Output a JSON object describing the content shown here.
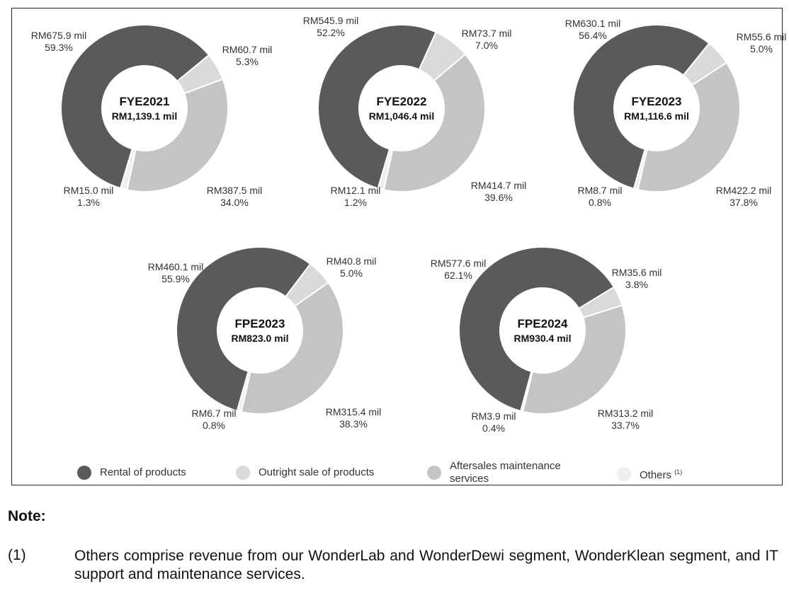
{
  "chart_data": {
    "type": "pie",
    "variant": "donut",
    "colors": {
      "rental": "#5a5a5a",
      "outright": "#d9d9d9",
      "aftersales": "#c4c4c4",
      "others": "#efefef"
    },
    "legend": [
      {
        "key": "rental",
        "label": "Rental of products"
      },
      {
        "key": "outright",
        "label": "Outright sale of products"
      },
      {
        "key": "aftersales",
        "label": "Aftersales maintenance services"
      },
      {
        "key": "others",
        "label": "Others",
        "sup": "(1)"
      }
    ],
    "charts": [
      {
        "title": "FYE2021",
        "total": "RM1,139.1 mil",
        "slices": [
          {
            "key": "rental",
            "value": 675.9,
            "amount": "RM675.9 mil",
            "percent": "59.3%"
          },
          {
            "key": "outright",
            "value": 60.7,
            "amount": "RM60.7 mil",
            "percent": "5.3%"
          },
          {
            "key": "aftersales",
            "value": 387.5,
            "amount": "RM387.5 mil",
            "percent": "34.0%"
          },
          {
            "key": "others",
            "value": 15.0,
            "amount": "RM15.0 mil",
            "percent": "1.3%"
          }
        ]
      },
      {
        "title": "FYE2022",
        "total": "RM1,046.4 mil",
        "slices": [
          {
            "key": "rental",
            "value": 545.9,
            "amount": "RM545.9 mil",
            "percent": "52.2%"
          },
          {
            "key": "outright",
            "value": 73.7,
            "amount": "RM73.7 mil",
            "percent": "7.0%"
          },
          {
            "key": "aftersales",
            "value": 414.7,
            "amount": "RM414.7 mil",
            "percent": "39.6%"
          },
          {
            "key": "others",
            "value": 12.1,
            "amount": "RM12.1 mil",
            "percent": "1.2%"
          }
        ]
      },
      {
        "title": "FYE2023",
        "total": "RM1,116.6 mil",
        "slices": [
          {
            "key": "rental",
            "value": 630.1,
            "amount": "RM630.1 mil",
            "percent": "56.4%"
          },
          {
            "key": "outright",
            "value": 55.6,
            "amount": "RM55.6 mil",
            "percent": "5.0%"
          },
          {
            "key": "aftersales",
            "value": 422.2,
            "amount": "RM422.2 mil",
            "percent": "37.8%"
          },
          {
            "key": "others",
            "value": 8.7,
            "amount": "RM8.7 mil",
            "percent": "0.8%"
          }
        ]
      },
      {
        "title": "FPE2023",
        "total": "RM823.0 mil",
        "slices": [
          {
            "key": "rental",
            "value": 460.1,
            "amount": "RM460.1 mil",
            "percent": "55.9%"
          },
          {
            "key": "outright",
            "value": 40.8,
            "amount": "RM40.8 mil",
            "percent": "5.0%"
          },
          {
            "key": "aftersales",
            "value": 315.4,
            "amount": "RM315.4 mil",
            "percent": "38.3%"
          },
          {
            "key": "others",
            "value": 6.7,
            "amount": "RM6.7 mil",
            "percent": "0.8%"
          }
        ]
      },
      {
        "title": "FPE2024",
        "total": "RM930.4 mil",
        "slices": [
          {
            "key": "rental",
            "value": 577.6,
            "amount": "RM577.6 mil",
            "percent": "62.1%"
          },
          {
            "key": "outright",
            "value": 35.6,
            "amount": "RM35.6 mil",
            "percent": "3.8%"
          },
          {
            "key": "aftersales",
            "value": 313.2,
            "amount": "RM313.2 mil",
            "percent": "33.7%"
          },
          {
            "key": "others",
            "value": 3.9,
            "amount": "RM3.9 mil",
            "percent": "0.4%"
          }
        ]
      }
    ]
  },
  "note": {
    "title": "Note:",
    "number": "(1)",
    "text": "Others comprise revenue from our WonderLab and WonderDewi segment, WonderKlean segment, and IT support and maintenance services."
  }
}
